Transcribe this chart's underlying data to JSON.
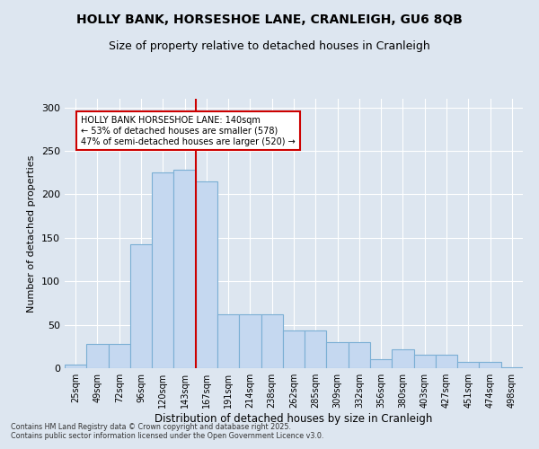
{
  "title1": "HOLLY BANK, HORSESHOE LANE, CRANLEIGH, GU6 8QB",
  "title2": "Size of property relative to detached houses in Cranleigh",
  "xlabel": "Distribution of detached houses by size in Cranleigh",
  "ylabel": "Number of detached properties",
  "categories": [
    "25sqm",
    "49sqm",
    "72sqm",
    "96sqm",
    "120sqm",
    "143sqm",
    "167sqm",
    "191sqm",
    "214sqm",
    "238sqm",
    "262sqm",
    "285sqm",
    "309sqm",
    "332sqm",
    "356sqm",
    "380sqm",
    "403sqm",
    "427sqm",
    "451sqm",
    "474sqm",
    "498sqm"
  ],
  "values": [
    4,
    28,
    28,
    143,
    225,
    228,
    215,
    62,
    62,
    62,
    43,
    43,
    30,
    30,
    10,
    22,
    16,
    16,
    7,
    7,
    1
  ],
  "bar_color": "#c5d8f0",
  "bar_edge_color": "#7bafd4",
  "vline_x": 5.5,
  "vline_color": "#cc0000",
  "annotation_text": "HOLLY BANK HORSESHOE LANE: 140sqm\n← 53% of detached houses are smaller (578)\n47% of semi-detached houses are larger (520) →",
  "annotation_box_color": "#ffffff",
  "annotation_box_edge": "#cc0000",
  "ylim": [
    0,
    310
  ],
  "yticks": [
    0,
    50,
    100,
    150,
    200,
    250,
    300
  ],
  "background_color": "#dde6f0",
  "grid_color": "#ffffff",
  "footnote": "Contains HM Land Registry data © Crown copyright and database right 2025.\nContains public sector information licensed under the Open Government Licence v3.0."
}
